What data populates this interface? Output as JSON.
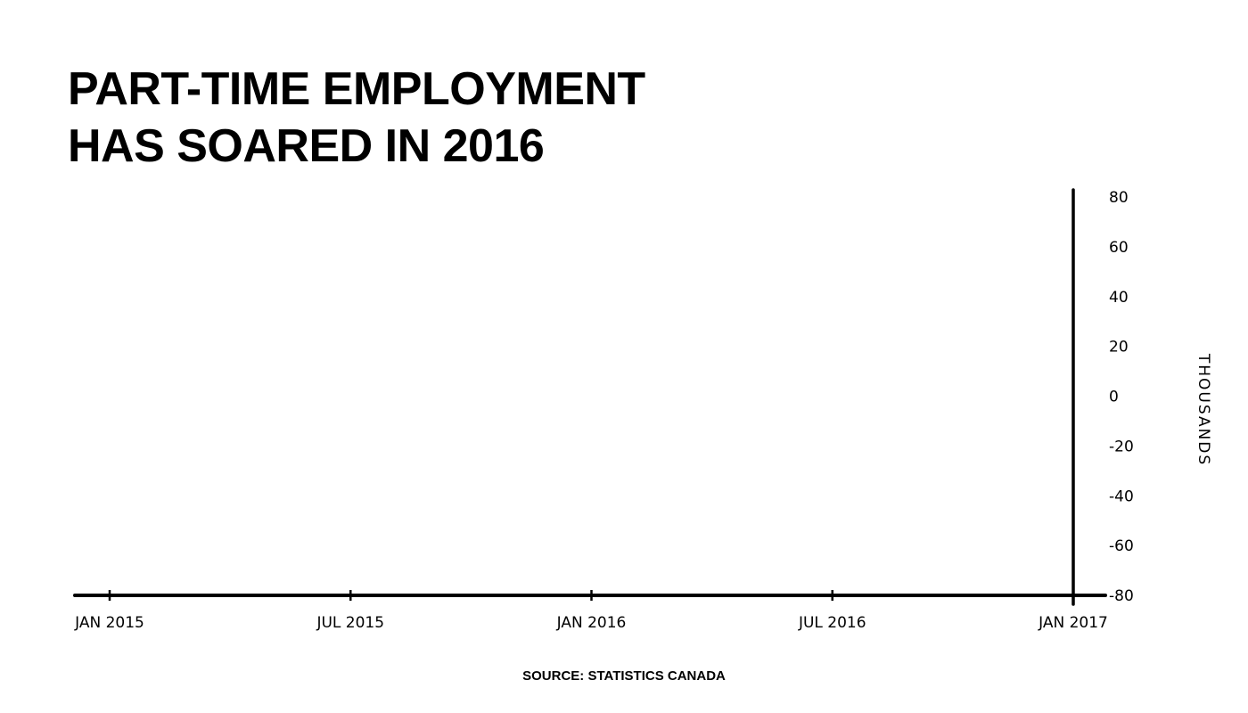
{
  "chart_data": {
    "type": "line",
    "title_lines": [
      "PART-TIME EMPLOYMENT",
      "HAS SOARED IN 2016"
    ],
    "x_ticks": [
      "Jan 2015",
      "Jul 2015",
      "Jan 2016",
      "Jul 2016",
      "Jan 2017"
    ],
    "y_ticks": [
      80,
      60,
      40,
      20,
      0,
      -20,
      -40,
      -60,
      -80
    ],
    "ylim": [
      -80,
      80
    ],
    "ylabel": "THOUSANDS",
    "y_axis_position": "right",
    "grid": false,
    "series": []
  },
  "source": "SOURCE: STATISTICS CANADA"
}
